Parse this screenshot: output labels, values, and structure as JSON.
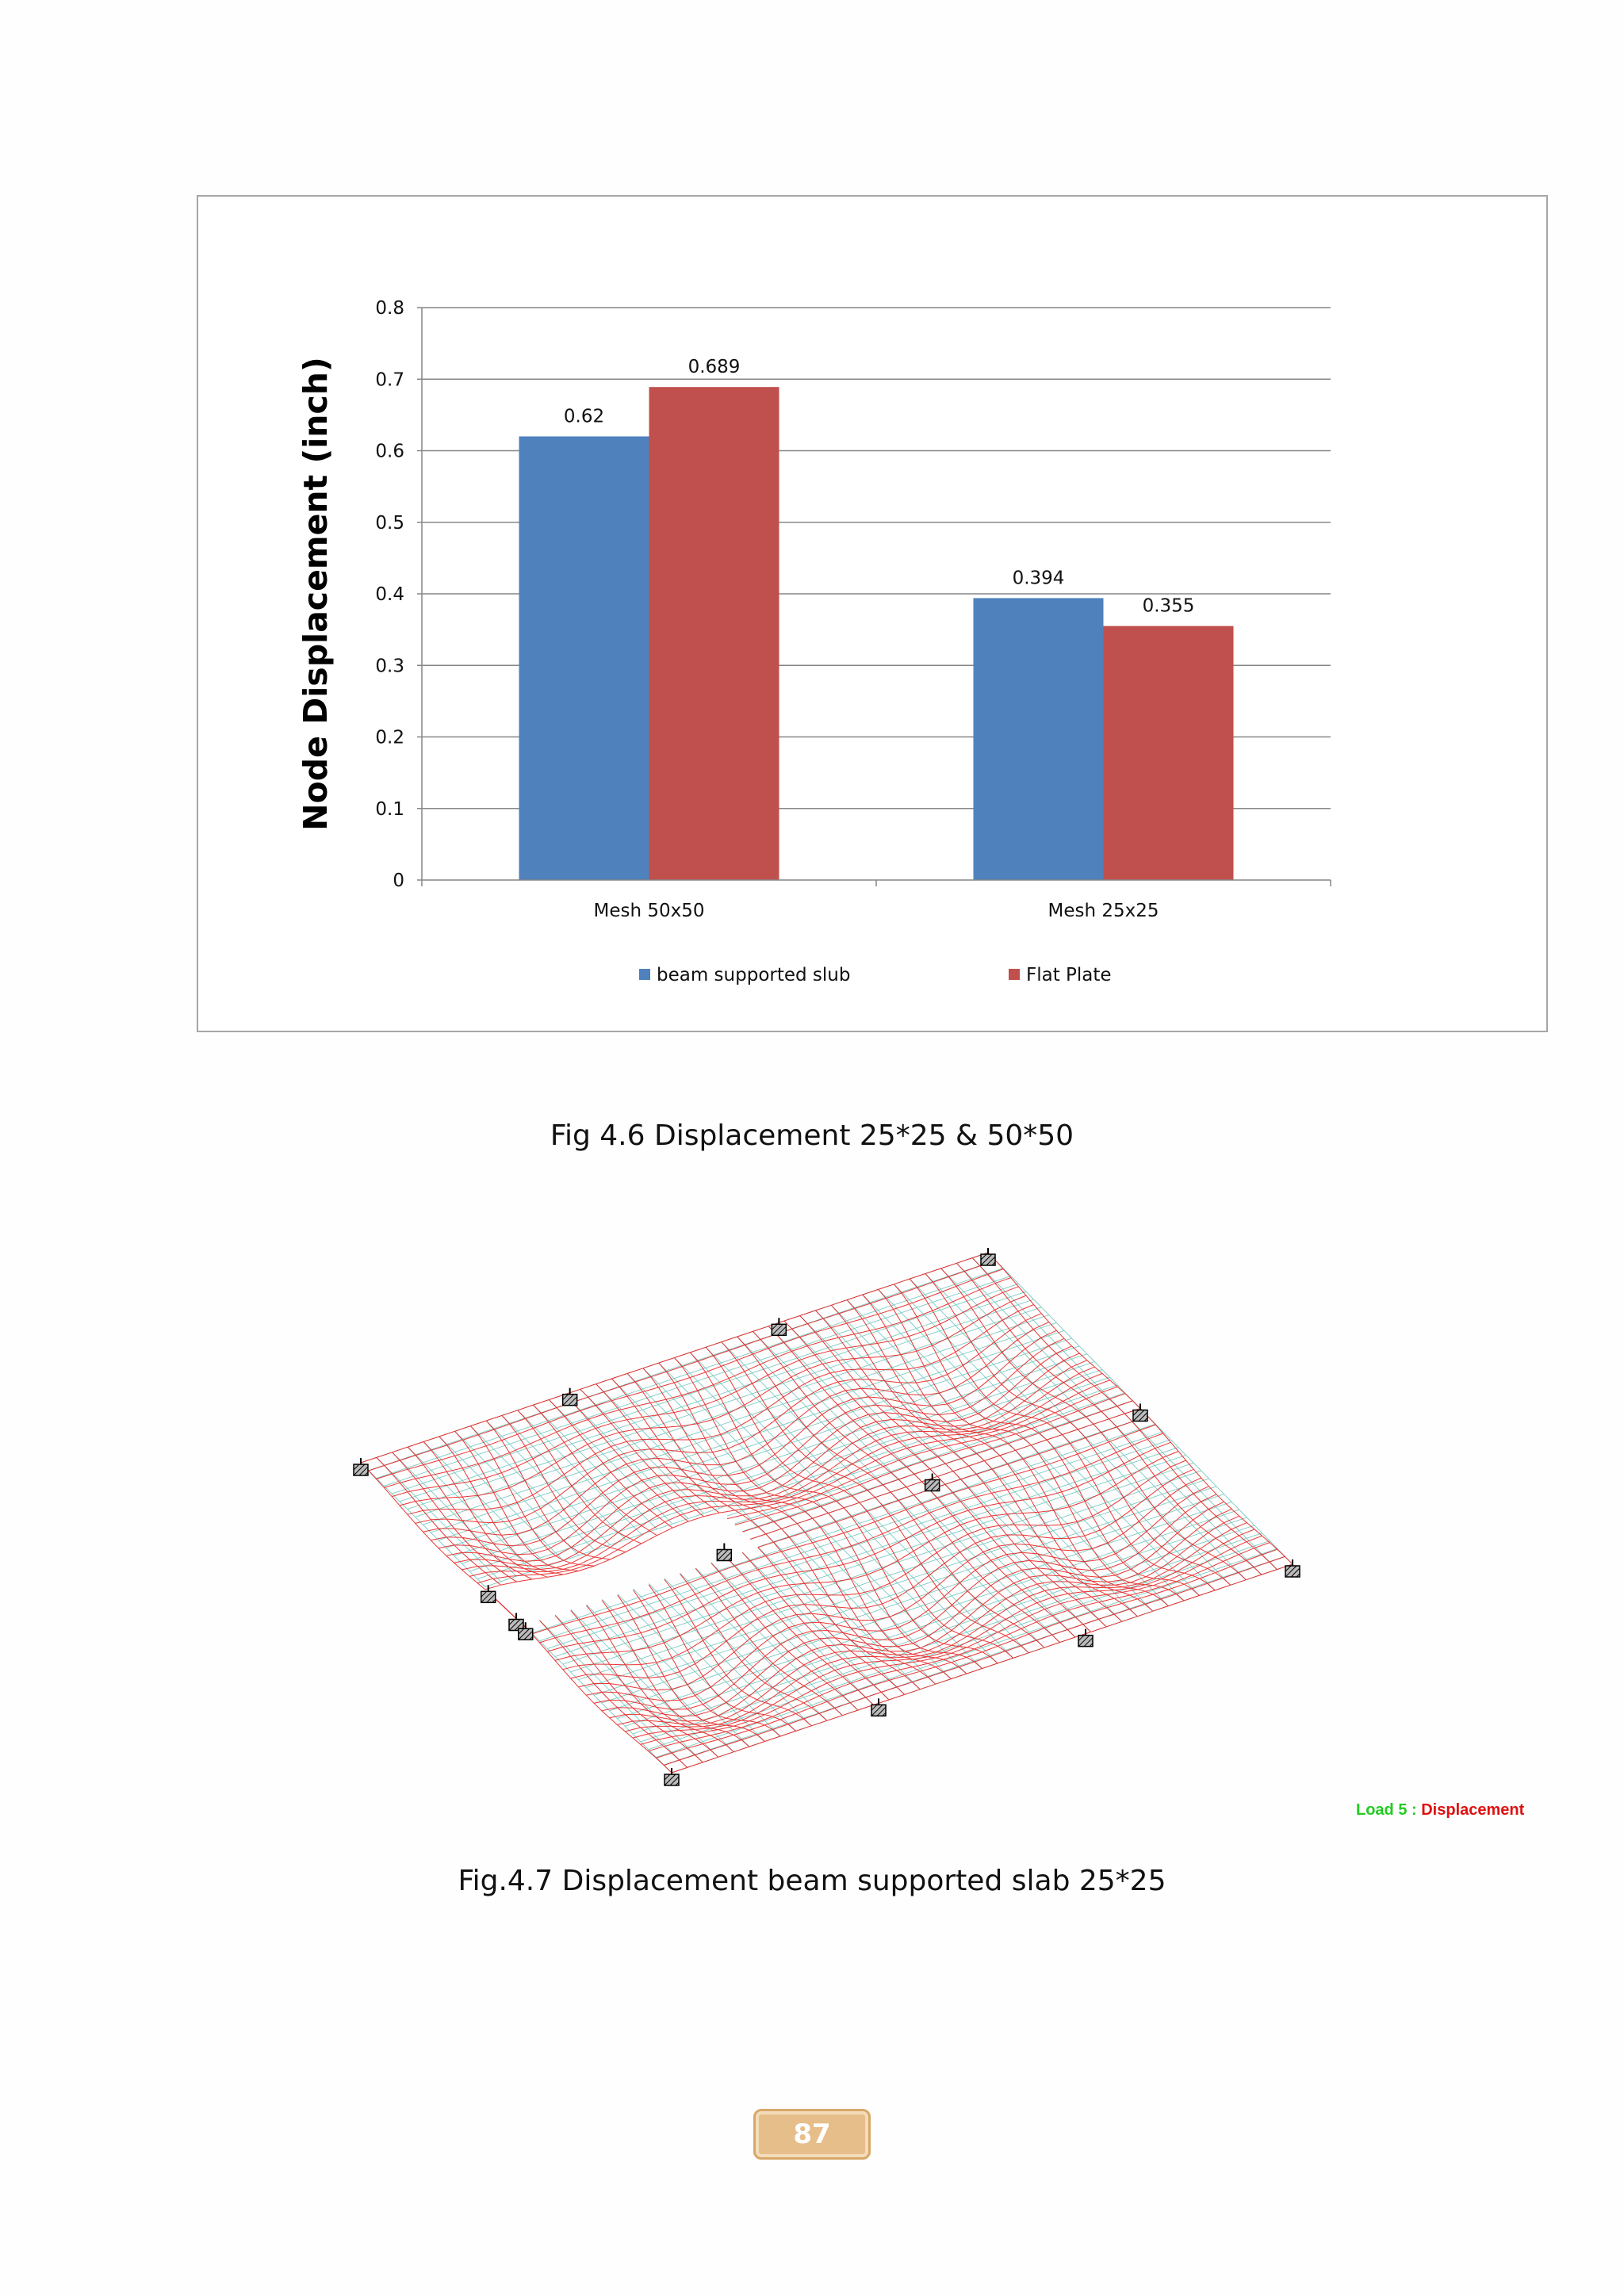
{
  "chart_data": {
    "type": "bar",
    "categories": [
      "Mesh 50x50",
      "Mesh 25x25"
    ],
    "series": [
      {
        "name": "beam supported slub",
        "values": [
          0.62,
          0.394
        ],
        "color": "#4f81bd"
      },
      {
        "name": "Flat Plate",
        "values": [
          0.689,
          0.355
        ],
        "color": "#c0504d"
      }
    ],
    "value_labels": [
      [
        "0.62",
        "0.394"
      ],
      [
        "0.689",
        "0.355"
      ]
    ],
    "title": "",
    "xlabel": "",
    "ylabel": "Node Displacement (inch)",
    "ylim": [
      0,
      0.8
    ],
    "yticks": [
      "0",
      "0.1",
      "0.2",
      "0.3",
      "0.4",
      "0.5",
      "0.6",
      "0.7",
      "0.8"
    ],
    "grid": true,
    "legend": "bottom"
  },
  "captions": {
    "fig46": "Fig 4.6 Displacement 25*25 & 50*50",
    "fig47": "Fig.4.7 Displacement beam supported slab 25*25"
  },
  "mesh_figure": {
    "load_prefix": "Load 5 : ",
    "load_suffix": "Displacement",
    "colors": {
      "deformed": "#e82020",
      "undeformed": "#66c2b8"
    }
  },
  "page_number": "87"
}
